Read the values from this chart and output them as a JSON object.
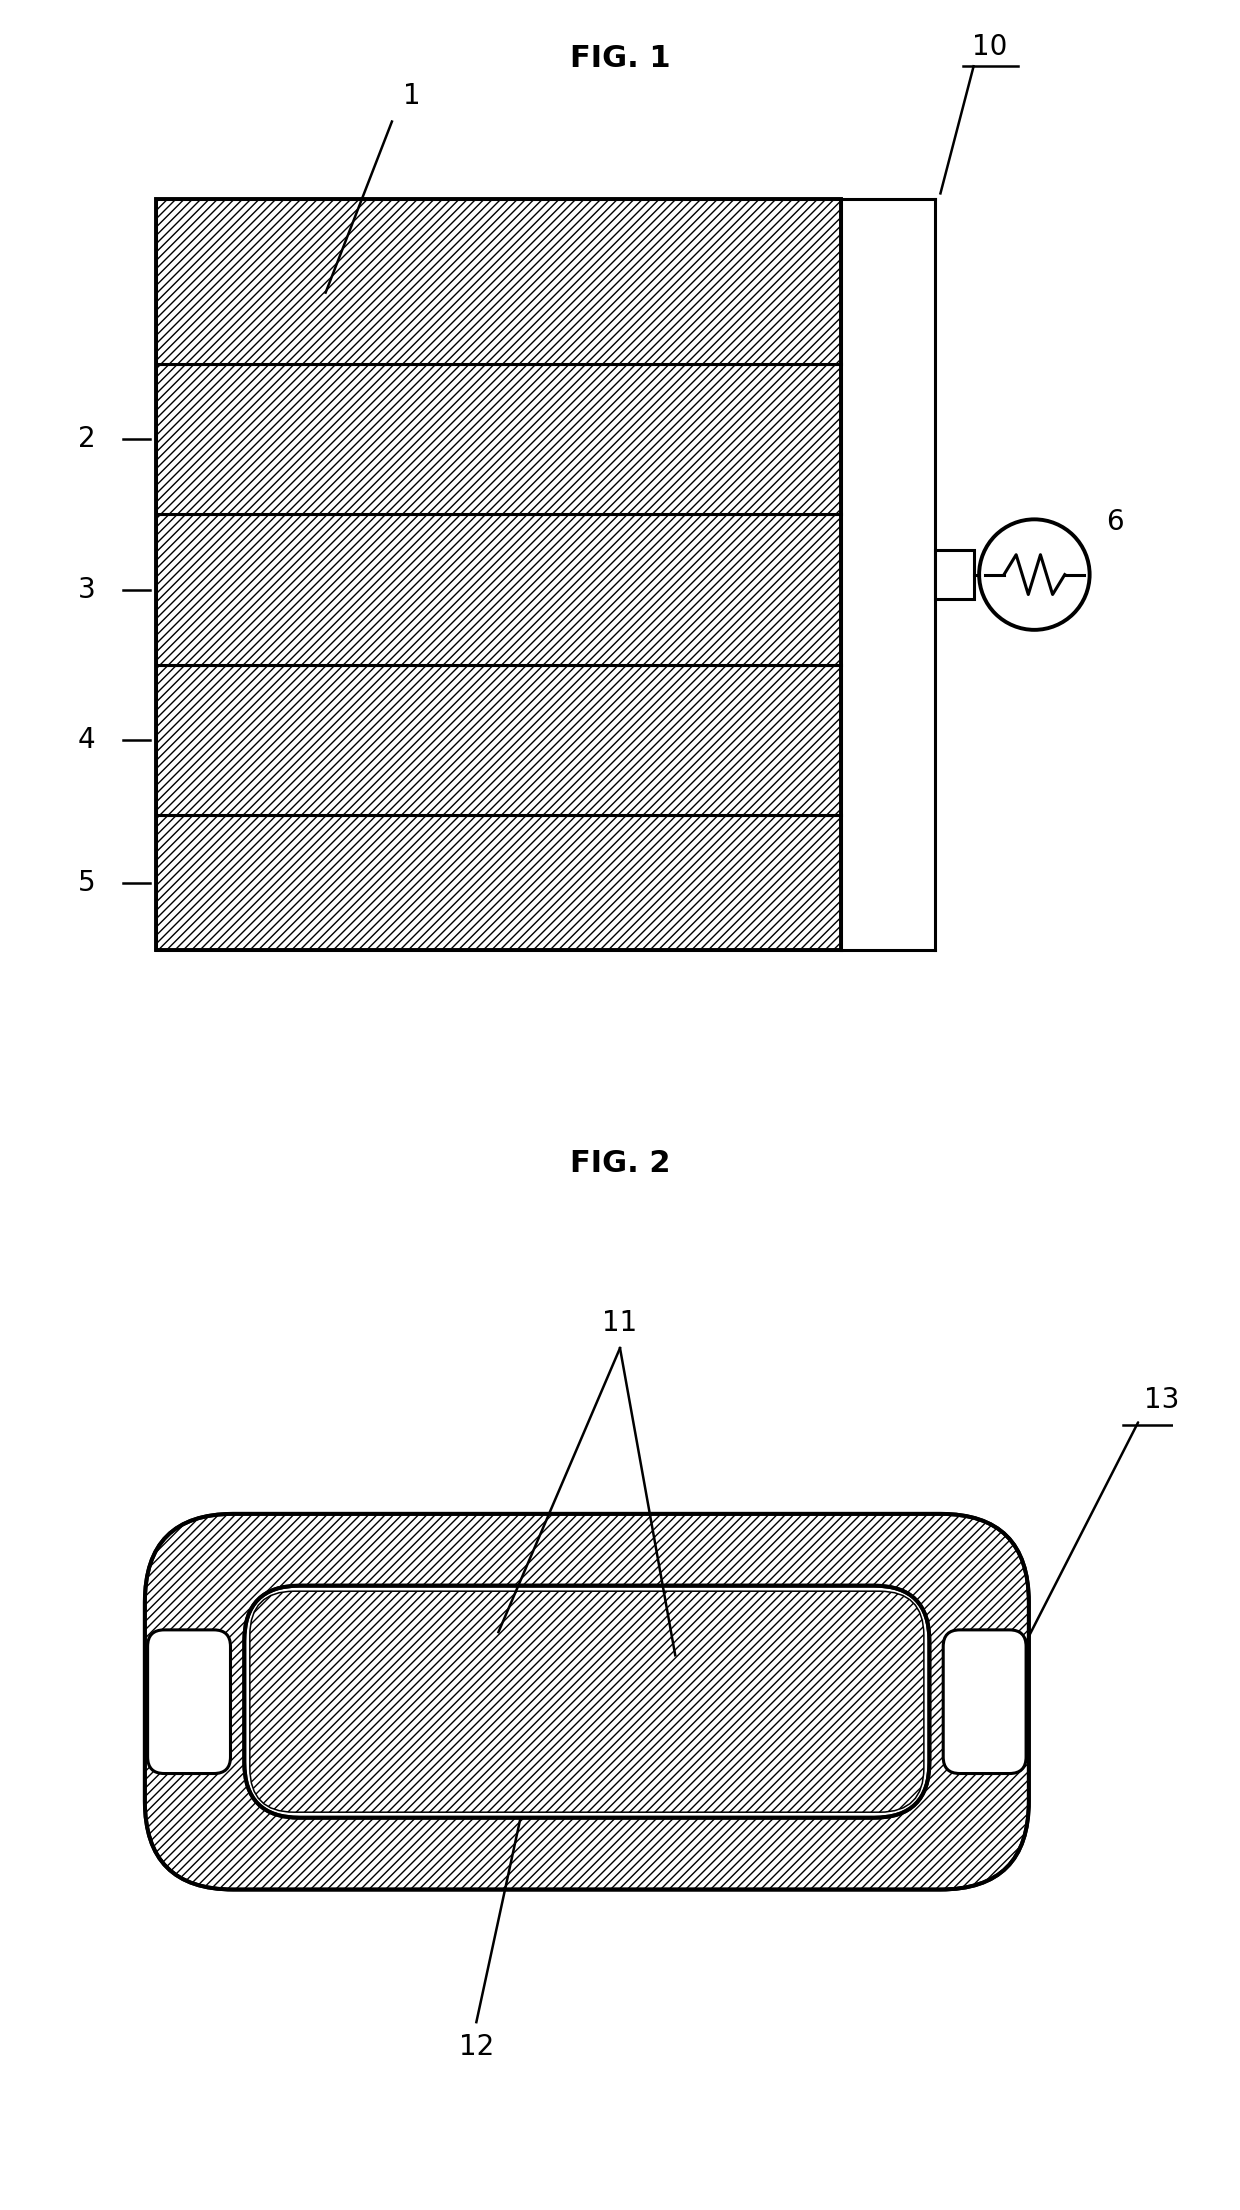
{
  "fig1_title": "FIG. 1",
  "fig2_title": "FIG. 2",
  "bg_color": "#ffffff",
  "line_color": "#000000"
}
